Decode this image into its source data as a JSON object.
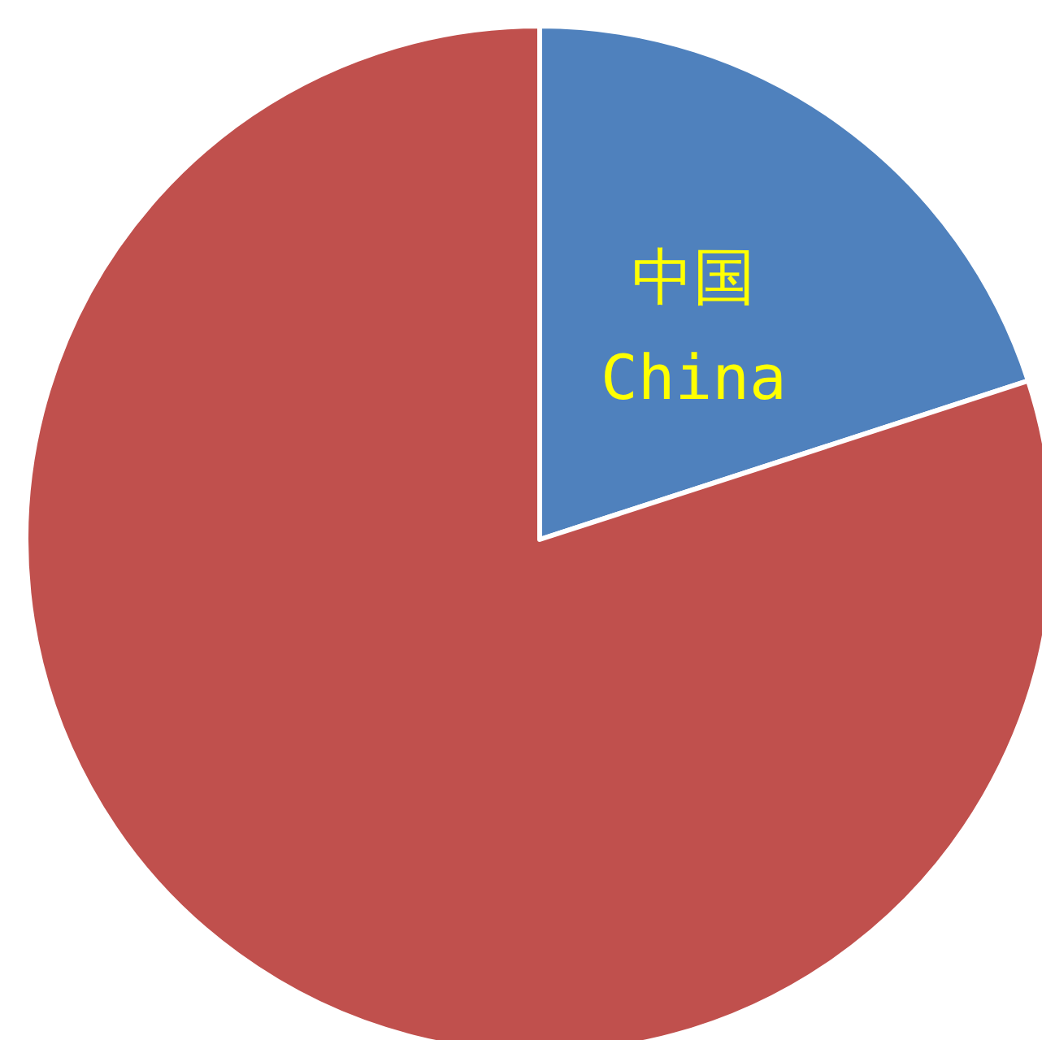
{
  "chart_data": {
    "type": "pie",
    "categories": [
      "中国\nChina",
      null
    ],
    "values": [
      20,
      80
    ],
    "colors": [
      "#4f81bd",
      "#c0504d"
    ]
  }
}
